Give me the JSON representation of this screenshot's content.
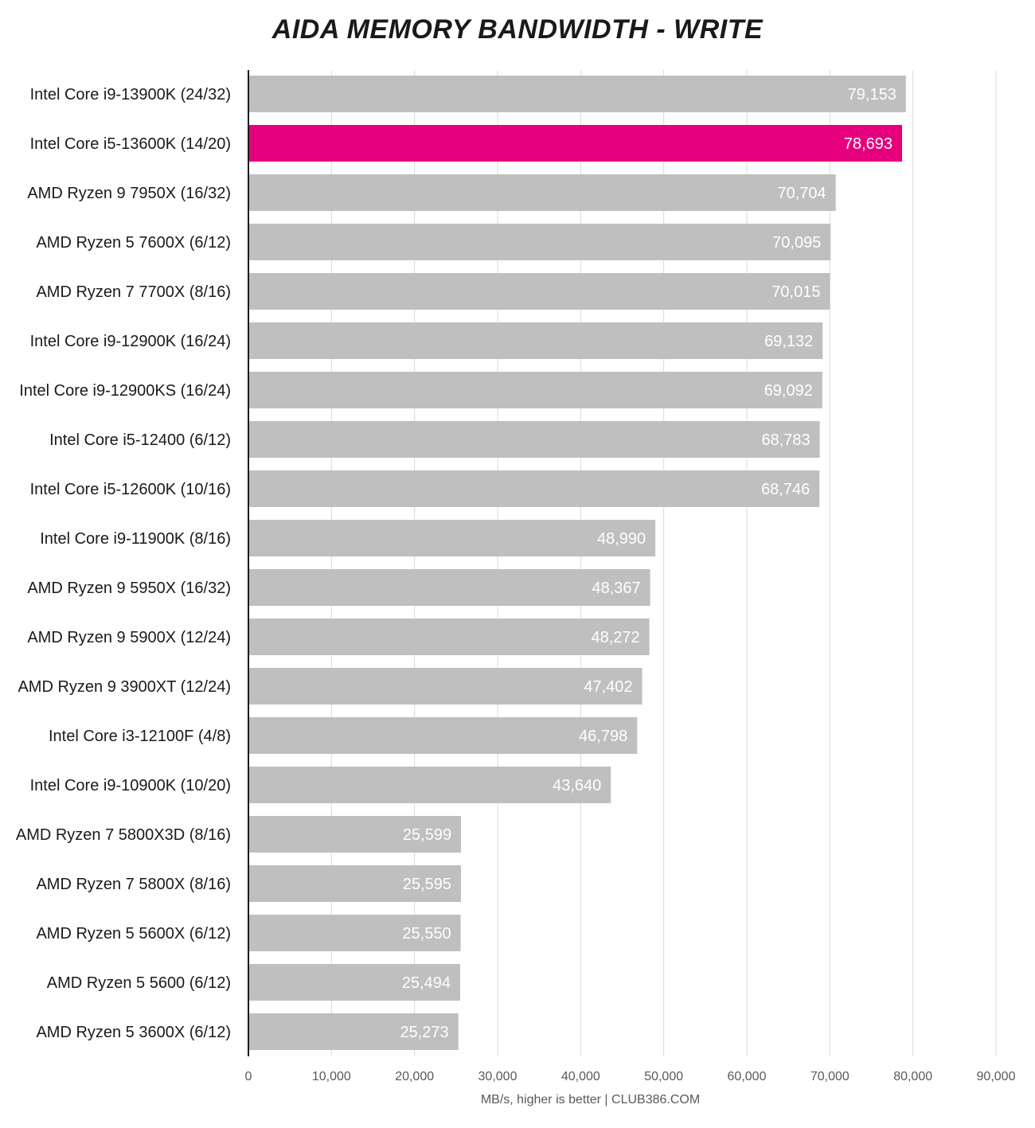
{
  "chart_data": {
    "type": "bar",
    "orientation": "horizontal",
    "title": "AIDA MEMORY BANDWIDTH - WRITE",
    "xlabel": "MB/s, higher is better | CLUB386.COM",
    "xlim": [
      0,
      90000
    ],
    "xticks": [
      0,
      10000,
      20000,
      30000,
      40000,
      50000,
      60000,
      70000,
      80000,
      90000
    ],
    "xtick_labels": [
      "0",
      "10,000",
      "20,000",
      "30,000",
      "40,000",
      "50,000",
      "60,000",
      "70,000",
      "80,000",
      "90,000"
    ],
    "grid": "vertical",
    "colors": {
      "default": "#bfbfbf",
      "highlight": "#e6007e"
    },
    "categories": [
      "Intel Core i9-13900K (24/32)",
      "Intel Core i5-13600K (14/20)",
      "AMD Ryzen 9 7950X (16/32)",
      "AMD Ryzen 5 7600X (6/12)",
      "AMD Ryzen 7 7700X (8/16)",
      "Intel Core i9-12900K (16/24)",
      "Intel Core i9-12900KS (16/24)",
      "Intel Core i5-12400 (6/12)",
      "Intel Core i5-12600K (10/16)",
      "Intel Core i9-11900K (8/16)",
      "AMD Ryzen 9 5950X (16/32)",
      "AMD Ryzen 9 5900X (12/24)",
      "AMD Ryzen 9 3900XT (12/24)",
      "Intel Core i3-12100F (4/8)",
      "Intel Core i9-10900K (10/20)",
      "AMD Ryzen 7 5800X3D (8/16)",
      "AMD Ryzen 7 5800X (8/16)",
      "AMD Ryzen 5 5600X (6/12)",
      "AMD Ryzen 5 5600 (6/12)",
      "AMD Ryzen 5 3600X (6/12)"
    ],
    "values": [
      79153,
      78693,
      70704,
      70095,
      70015,
      69132,
      69092,
      68783,
      68746,
      48990,
      48367,
      48272,
      47402,
      46798,
      43640,
      25599,
      25595,
      25550,
      25494,
      25273
    ],
    "value_labels": [
      "79,153",
      "78,693",
      "70,704",
      "70,095",
      "70,015",
      "69,132",
      "69,092",
      "68,783",
      "68,746",
      "48,990",
      "48,367",
      "48,272",
      "47,402",
      "46,798",
      "43,640",
      "25,599",
      "25,595",
      "25,550",
      "25,494",
      "25,273"
    ],
    "highlight_index": 1
  }
}
